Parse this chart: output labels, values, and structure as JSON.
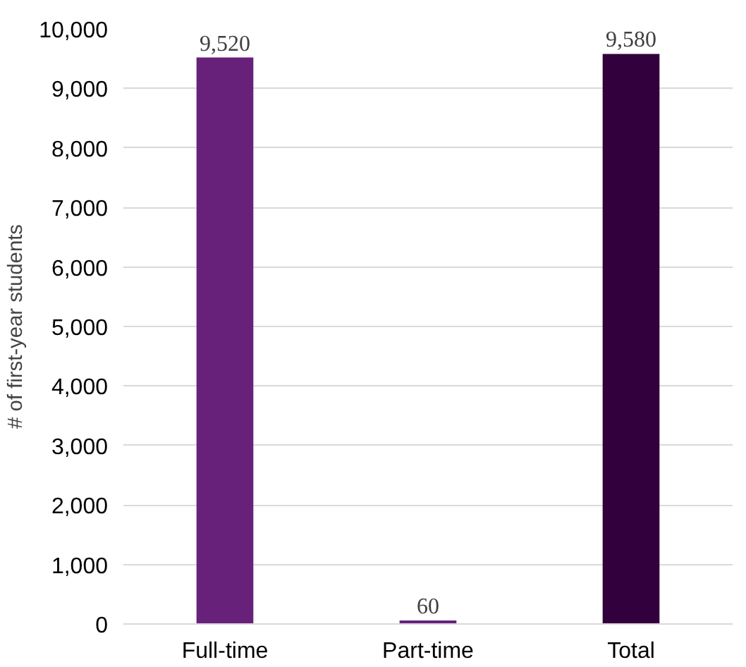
{
  "chart_data": {
    "type": "bar",
    "ylabel": "# of first-year students",
    "categories": [
      "Full-time",
      "Part-time",
      "Total"
    ],
    "values": [
      9520,
      60,
      9580
    ],
    "colors": [
      "#68217a",
      "#68217a",
      "#32003c"
    ],
    "ylim": [
      0,
      10000
    ],
    "yticks": [
      {
        "value": 0,
        "label": "0"
      },
      {
        "value": 1000,
        "label": "1,000"
      },
      {
        "value": 2000,
        "label": "2,000"
      },
      {
        "value": 3000,
        "label": "3,000"
      },
      {
        "value": 4000,
        "label": "4,000"
      },
      {
        "value": 5000,
        "label": "5,000"
      },
      {
        "value": 6000,
        "label": "6,000"
      },
      {
        "value": 7000,
        "label": "7,000"
      },
      {
        "value": 8000,
        "label": "8,000"
      },
      {
        "value": 9000,
        "label": "9,000"
      },
      {
        "value": 10000,
        "label": "10,000"
      }
    ],
    "value_labels": [
      "9,520",
      "60",
      "9,580"
    ],
    "grid": "y"
  }
}
